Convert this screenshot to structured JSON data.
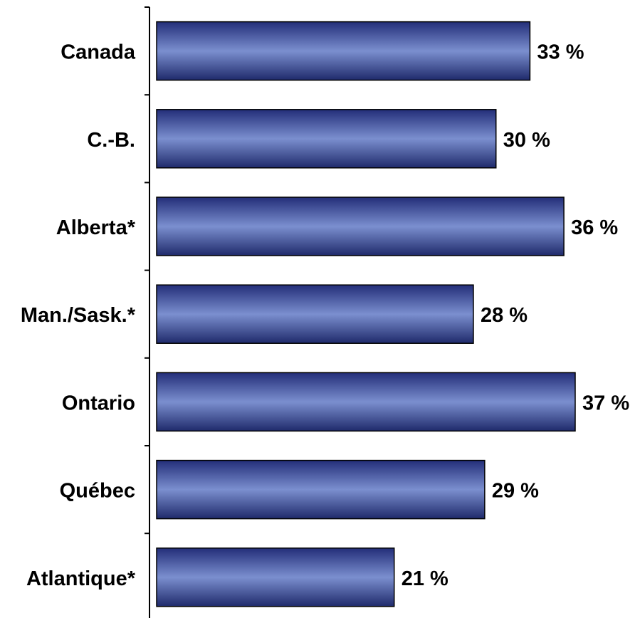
{
  "chart_data": {
    "type": "bar",
    "orientation": "horizontal",
    "categories": [
      "Canada",
      "C.-B.",
      "Alberta*",
      "Man./Sask.*",
      "Ontario",
      "Québec",
      "Atlantique*"
    ],
    "values": [
      33,
      30,
      36,
      28,
      37,
      29,
      21
    ],
    "value_labels": [
      "33 %",
      "30 %",
      "36 %",
      "28 %",
      "37 %",
      "29 %",
      "21 %"
    ],
    "unit": "%",
    "xlim": [
      0,
      37
    ],
    "grid": false,
    "legend": "none",
    "colors": {
      "bar_edge": "#1f2a6b",
      "bar_center": "#7b8fcf",
      "bar_dark": "#232e79",
      "bar_outline": "#000000",
      "axis": "#000000"
    }
  }
}
